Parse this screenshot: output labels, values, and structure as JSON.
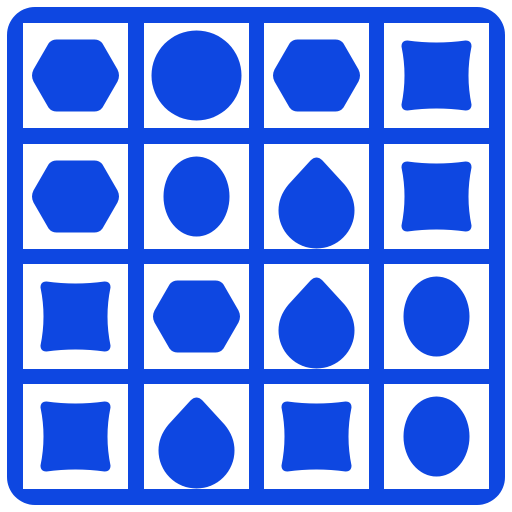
{
  "colors": {
    "board": "#0E47E1",
    "cell": "#FFFFFF",
    "piece": "#0E47E1"
  },
  "grid": {
    "rows": 4,
    "cols": 4,
    "cells": [
      [
        "hexagon",
        "circle",
        "hexagon",
        "pinched-square"
      ],
      [
        "hexagon",
        "oval",
        "teardrop",
        "pinched-square"
      ],
      [
        "pinched-square",
        "hexagon",
        "teardrop",
        "oval"
      ],
      [
        "pinched-square",
        "teardrop",
        "pinched-square",
        "oval"
      ]
    ]
  }
}
